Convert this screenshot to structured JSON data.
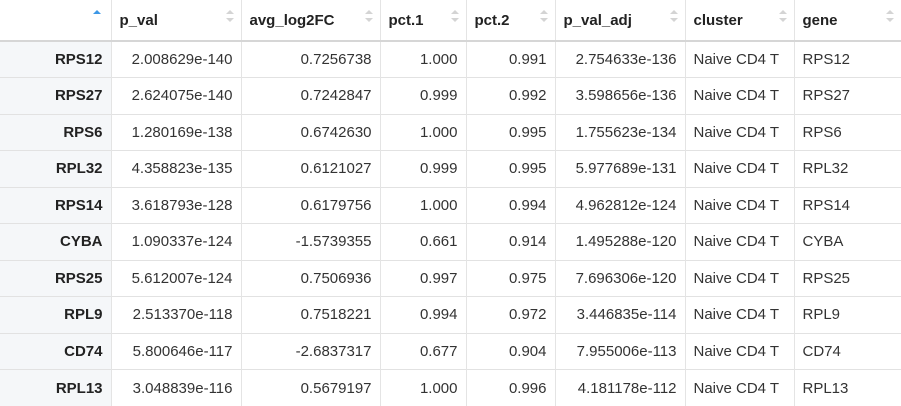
{
  "table": {
    "columns": [
      "p_val",
      "avg_log2FC",
      "pct.1",
      "pct.2",
      "p_val_adj",
      "cluster",
      "gene"
    ],
    "rows": [
      {
        "name": "RPS12",
        "cells": [
          "2.008629e-140",
          "0.7256738",
          "1.000",
          "0.991",
          "2.754633e-136",
          "Naive CD4 T",
          "RPS12"
        ]
      },
      {
        "name": "RPS27",
        "cells": [
          "2.624075e-140",
          "0.7242847",
          "0.999",
          "0.992",
          "3.598656e-136",
          "Naive CD4 T",
          "RPS27"
        ]
      },
      {
        "name": "RPS6",
        "cells": [
          "1.280169e-138",
          "0.6742630",
          "1.000",
          "0.995",
          "1.755623e-134",
          "Naive CD4 T",
          "RPS6"
        ]
      },
      {
        "name": "RPL32",
        "cells": [
          "4.358823e-135",
          "0.6121027",
          "0.999",
          "0.995",
          "5.977689e-131",
          "Naive CD4 T",
          "RPL32"
        ]
      },
      {
        "name": "RPS14",
        "cells": [
          "3.618793e-128",
          "0.6179756",
          "1.000",
          "0.994",
          "4.962812e-124",
          "Naive CD4 T",
          "RPS14"
        ]
      },
      {
        "name": "CYBA",
        "cells": [
          "1.090337e-124",
          "-1.5739355",
          "0.661",
          "0.914",
          "1.495288e-120",
          "Naive CD4 T",
          "CYBA"
        ]
      },
      {
        "name": "RPS25",
        "cells": [
          "5.612007e-124",
          "0.7506936",
          "0.997",
          "0.975",
          "7.696306e-120",
          "Naive CD4 T",
          "RPS25"
        ]
      },
      {
        "name": "RPL9",
        "cells": [
          "2.513370e-118",
          "0.7518221",
          "0.994",
          "0.972",
          "3.446835e-114",
          "Naive CD4 T",
          "RPL9"
        ]
      },
      {
        "name": "CD74",
        "cells": [
          "5.800646e-117",
          "-2.6837317",
          "0.677",
          "0.904",
          "7.955006e-113",
          "Naive CD4 T",
          "CD74"
        ]
      },
      {
        "name": "RPL13",
        "cells": [
          "3.048839e-116",
          "0.5679197",
          "1.000",
          "0.996",
          "4.181178e-112",
          "Naive CD4 T",
          "RPL13"
        ]
      }
    ]
  }
}
